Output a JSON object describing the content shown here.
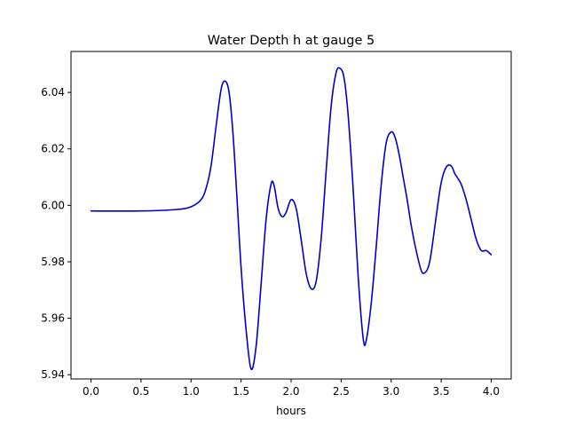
{
  "chart_data": {
    "type": "line",
    "title": "Water Depth h at gauge 5",
    "xlabel": "hours",
    "ylabel": "",
    "xlim": [
      -0.2,
      4.2
    ],
    "ylim": [
      5.9385,
      6.0545
    ],
    "xticks": [
      0.0,
      0.5,
      1.0,
      1.5,
      2.0,
      2.5,
      3.0,
      3.5,
      4.0
    ],
    "xtick_labels": [
      "0.0",
      "0.5",
      "1.0",
      "1.5",
      "2.0",
      "2.5",
      "3.0",
      "3.5",
      "4.0"
    ],
    "yticks": [
      5.94,
      5.96,
      5.98,
      6.0,
      6.02,
      6.04
    ],
    "ytick_labels": [
      "5.94",
      "5.96",
      "5.98",
      "6.00",
      "6.02",
      "6.04"
    ],
    "grid": false,
    "legend": "none",
    "series": [
      {
        "color": "#0000cc",
        "x": [
          0.0,
          0.5,
          0.85,
          1.0,
          1.1,
          1.15,
          1.2,
          1.25,
          1.3,
          1.34,
          1.38,
          1.42,
          1.46,
          1.5,
          1.55,
          1.6,
          1.65,
          1.7,
          1.75,
          1.8,
          1.83,
          1.87,
          1.91,
          1.95,
          2.0,
          2.05,
          2.1,
          2.15,
          2.2,
          2.25,
          2.3,
          2.35,
          2.4,
          2.45,
          2.49,
          2.53,
          2.57,
          2.62,
          2.67,
          2.72,
          2.75,
          2.8,
          2.85,
          2.9,
          2.95,
          3.0,
          3.04,
          3.08,
          3.12,
          3.16,
          3.2,
          3.25,
          3.3,
          3.33,
          3.37,
          3.4,
          3.45,
          3.5,
          3.55,
          3.6,
          3.64,
          3.7,
          3.75,
          3.8,
          3.85,
          3.9,
          3.95,
          4.0
        ],
        "y": [
          5.998,
          5.998,
          5.9985,
          5.9995,
          6.002,
          6.006,
          6.014,
          6.028,
          6.041,
          6.044,
          6.04,
          6.025,
          6.002,
          5.978,
          5.956,
          5.942,
          5.95,
          5.972,
          5.995,
          6.0075,
          6.007,
          5.999,
          5.996,
          5.9975,
          6.002,
          5.999,
          5.988,
          5.976,
          5.9705,
          5.973,
          5.988,
          6.012,
          6.035,
          6.047,
          6.0485,
          6.045,
          6.032,
          6.006,
          5.975,
          5.953,
          5.952,
          5.965,
          5.985,
          6.007,
          6.022,
          6.026,
          6.024,
          6.018,
          6.01,
          6.002,
          5.993,
          5.984,
          5.977,
          5.976,
          5.978,
          5.983,
          5.996,
          6.008,
          6.0135,
          6.014,
          6.011,
          6.0075,
          6.002,
          5.995,
          5.988,
          5.984,
          5.984,
          5.9825
        ]
      }
    ]
  }
}
